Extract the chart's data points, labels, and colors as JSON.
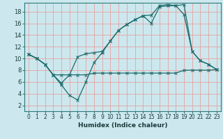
{
  "title": "",
  "xlabel": "Humidex (Indice chaleur)",
  "bg_color": "#cce8ee",
  "grid_color": "#e8a0a0",
  "line_color": "#1a6b6b",
  "xlim": [
    -0.5,
    23.5
  ],
  "ylim": [
    1.0,
    19.5
  ],
  "yticks": [
    2,
    4,
    6,
    8,
    10,
    12,
    14,
    16,
    18
  ],
  "xticks": [
    0,
    1,
    2,
    3,
    4,
    5,
    6,
    7,
    8,
    9,
    10,
    11,
    12,
    13,
    14,
    15,
    16,
    17,
    18,
    19,
    20,
    21,
    22,
    23
  ],
  "line1_x": [
    0,
    1,
    2,
    3,
    4,
    5,
    6,
    7,
    8,
    9,
    10,
    11,
    12,
    13,
    14,
    15,
    16,
    17,
    18,
    19,
    20,
    21,
    22,
    23
  ],
  "line1_y": [
    10.7,
    10.0,
    9.0,
    7.2,
    5.5,
    3.7,
    2.9,
    6.0,
    9.3,
    11.0,
    13.0,
    14.8,
    15.8,
    16.6,
    17.3,
    17.4,
    19.0,
    19.2,
    19.0,
    19.2,
    11.2,
    9.6,
    9.0,
    8.1
  ],
  "line2_x": [
    0,
    1,
    2,
    3,
    4,
    5,
    6,
    7,
    8,
    9,
    10,
    11,
    12,
    13,
    14,
    15,
    16,
    17,
    18,
    19,
    20,
    21,
    22,
    23
  ],
  "line2_y": [
    10.7,
    10.0,
    9.0,
    7.2,
    7.2,
    7.2,
    7.2,
    7.2,
    7.5,
    7.5,
    7.5,
    7.5,
    7.5,
    7.5,
    7.5,
    7.5,
    7.5,
    7.5,
    7.5,
    8.0,
    8.0,
    8.0,
    8.0,
    8.1
  ],
  "line3_x": [
    0,
    1,
    2,
    3,
    4,
    5,
    6,
    7,
    8,
    9,
    10,
    11,
    12,
    13,
    14,
    15,
    16,
    17,
    18,
    19,
    20,
    21,
    22,
    23
  ],
  "line3_y": [
    10.7,
    10.0,
    9.0,
    7.2,
    5.8,
    7.2,
    10.3,
    10.8,
    11.0,
    11.2,
    13.0,
    14.8,
    15.8,
    16.6,
    17.3,
    16.0,
    18.8,
    19.0,
    19.0,
    17.5,
    11.2,
    9.6,
    9.0,
    8.1
  ],
  "xlabel_fontsize": 6.5,
  "tick_fontsize": 5.5,
  "ytick_fontsize": 6.0
}
